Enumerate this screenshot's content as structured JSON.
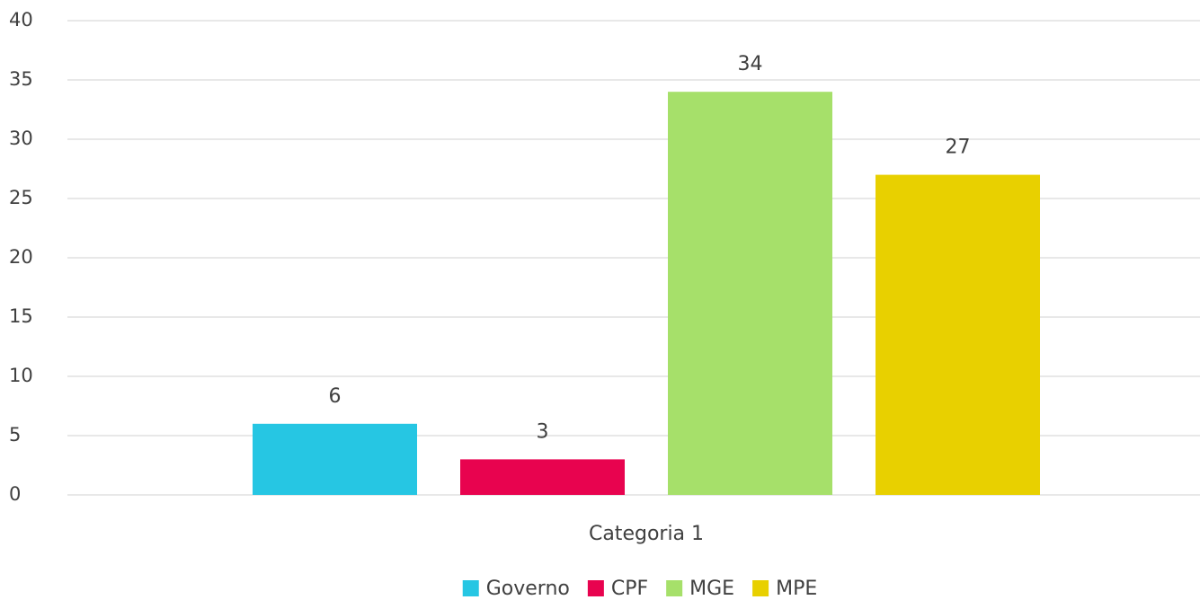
{
  "chart_data": {
    "type": "bar",
    "categories": [
      "Categoria 1"
    ],
    "series": [
      {
        "name": "Governo",
        "color": "#26c6e3",
        "values": [
          6
        ]
      },
      {
        "name": "CPF",
        "color": "#e8034f",
        "values": [
          3
        ]
      },
      {
        "name": "MGE",
        "color": "#a6e06a",
        "values": [
          34
        ]
      },
      {
        "name": "MPE",
        "color": "#e8d000",
        "values": [
          27
        ]
      }
    ],
    "ylim": [
      0,
      40
    ],
    "yticks": [
      0,
      5,
      10,
      15,
      20,
      25,
      30,
      35,
      40
    ],
    "grid": true,
    "legend": "bottom"
  }
}
